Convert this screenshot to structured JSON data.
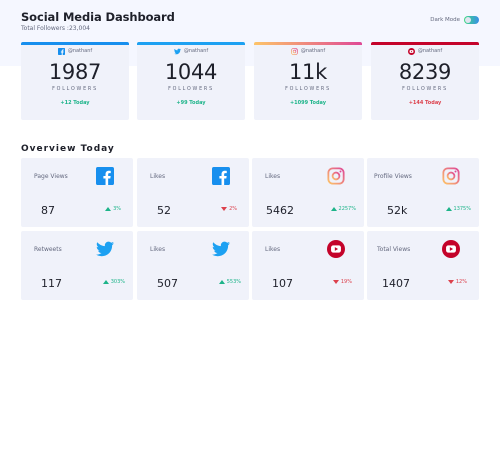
{
  "header": {
    "title": "Social Media Dashboard",
    "subtitle": "Total Followers :23,004",
    "dark_mode_label": "Dark Mode"
  },
  "colors": {
    "facebook": "#178fee",
    "twitter": "#1da1f2",
    "instagram_start": "#fdc468",
    "instagram_end": "#df4996",
    "youtube": "#c4032a",
    "up": "#1db489",
    "down": "#dc414c"
  },
  "followers": [
    {
      "platform": "facebook",
      "icon": "facebook-icon",
      "handle": "@nathanf",
      "count": "1987",
      "label": "FOLLOWERS",
      "today": "+12 Today",
      "trend": "up"
    },
    {
      "platform": "twitter",
      "icon": "twitter-icon",
      "handle": "@nathanf",
      "count": "1044",
      "label": "FOLLOWERS",
      "today": "+99 Today",
      "trend": "up"
    },
    {
      "platform": "instagram",
      "icon": "instagram-icon",
      "handle": "@nathanf",
      "count": "11k",
      "label": "FOLLOWERS",
      "today": "+1099 Today",
      "trend": "up"
    },
    {
      "platform": "youtube",
      "icon": "youtube-icon",
      "handle": "@nathanf",
      "count": "8239",
      "label": "FOLLOWERS",
      "today": "+144 Today",
      "trend": "down"
    }
  ],
  "overview": {
    "title": "Overview Today",
    "cards": [
      {
        "label": "Page Views",
        "icon": "facebook-icon",
        "value": "87",
        "change": "3%",
        "trend": "up"
      },
      {
        "label": "Likes",
        "icon": "facebook-icon",
        "value": "52",
        "change": "2%",
        "trend": "down"
      },
      {
        "label": "Likes",
        "icon": "instagram-icon",
        "value": "5462",
        "change": "2257%",
        "trend": "up"
      },
      {
        "label": "Profile Views",
        "icon": "instagram-icon",
        "value": "52k",
        "change": "1375%",
        "trend": "up"
      },
      {
        "label": "Retweets",
        "icon": "twitter-icon",
        "value": "117",
        "change": "303%",
        "trend": "up"
      },
      {
        "label": "Likes",
        "icon": "twitter-icon",
        "value": "507",
        "change": "553%",
        "trend": "up"
      },
      {
        "label": "Likes",
        "icon": "youtube-icon",
        "value": "107",
        "change": "19%",
        "trend": "down"
      },
      {
        "label": "Total Views",
        "icon": "youtube-icon",
        "value": "1407",
        "change": "12%",
        "trend": "down"
      }
    ]
  }
}
